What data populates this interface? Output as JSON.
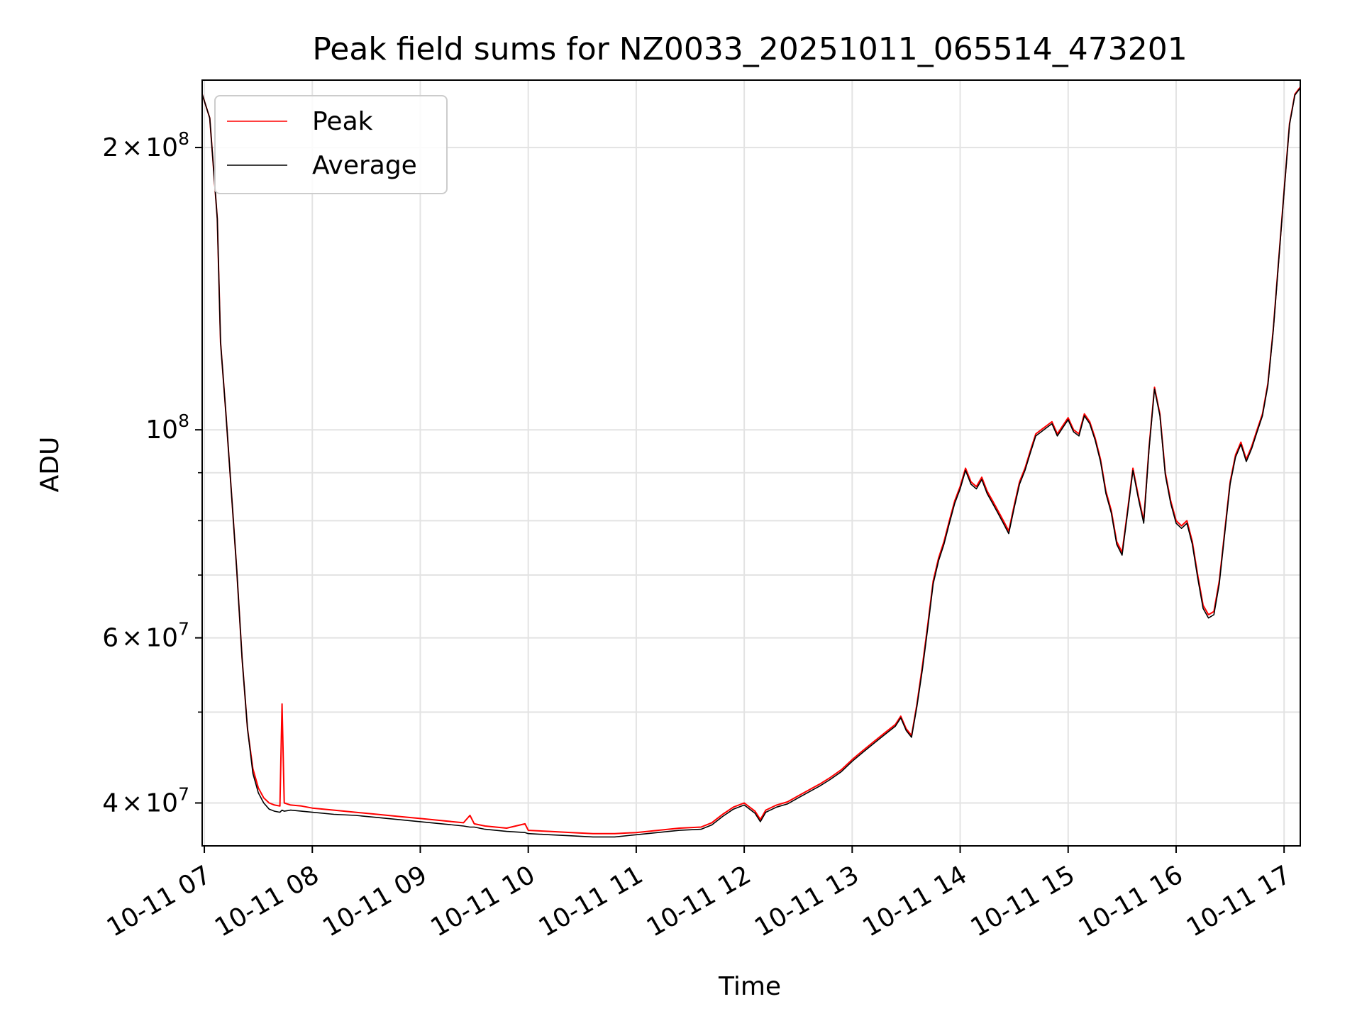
{
  "chart_data": {
    "type": "line",
    "title": "Peak field sums for NZ0033_20251011_065514_473201",
    "xlabel": "Time",
    "ylabel": "ADU",
    "x_unit": "hours (decimal time of day, 2025-10-11)",
    "xlim": [
      6.98,
      17.15
    ],
    "ylim": [
      36000000,
      236000000
    ],
    "yscale": "log",
    "grid": true,
    "legend_position": "upper-left",
    "x_ticks": [
      {
        "value": 7,
        "label": "10-11 07"
      },
      {
        "value": 8,
        "label": "10-11 08"
      },
      {
        "value": 9,
        "label": "10-11 09"
      },
      {
        "value": 10,
        "label": "10-11 10"
      },
      {
        "value": 11,
        "label": "10-11 11"
      },
      {
        "value": 12,
        "label": "10-11 12"
      },
      {
        "value": 13,
        "label": "10-11 13"
      },
      {
        "value": 14,
        "label": "10-11 14"
      },
      {
        "value": 15,
        "label": "10-11 15"
      },
      {
        "value": 16,
        "label": "10-11 16"
      },
      {
        "value": 17,
        "label": "10-11 17"
      }
    ],
    "y_ticks": [
      {
        "value": 40000000,
        "mant": "4",
        "exp": "7"
      },
      {
        "value": 60000000,
        "mant": "6",
        "exp": "7"
      },
      {
        "value": 100000000,
        "mant": "",
        "exp": "8"
      },
      {
        "value": 200000000,
        "mant": "2",
        "exp": "8"
      }
    ],
    "y_minor_ticks": [
      50000000,
      70000000,
      80000000,
      90000000
    ],
    "series": [
      {
        "name": "Peak",
        "color": "#ff0000",
        "x": [
          6.98,
          7.05,
          7.12,
          7.15,
          7.2,
          7.25,
          7.3,
          7.35,
          7.4,
          7.45,
          7.5,
          7.55,
          7.6,
          7.65,
          7.7,
          7.72,
          7.74,
          7.8,
          7.9,
          8.0,
          8.2,
          8.4,
          8.6,
          8.8,
          9.0,
          9.2,
          9.4,
          9.46,
          9.5,
          9.6,
          9.8,
          9.97,
          10.0,
          10.2,
          10.4,
          10.6,
          10.8,
          11.0,
          11.2,
          11.4,
          11.6,
          11.7,
          11.8,
          11.9,
          12.0,
          12.1,
          12.15,
          12.2,
          12.3,
          12.4,
          12.5,
          12.6,
          12.7,
          12.8,
          12.9,
          13.0,
          13.1,
          13.2,
          13.3,
          13.4,
          13.45,
          13.5,
          13.55,
          13.6,
          13.65,
          13.7,
          13.75,
          13.8,
          13.85,
          13.9,
          13.95,
          14.0,
          14.05,
          14.1,
          14.15,
          14.2,
          14.25,
          14.3,
          14.35,
          14.4,
          14.45,
          14.5,
          14.55,
          14.6,
          14.65,
          14.7,
          14.75,
          14.8,
          14.85,
          14.9,
          14.95,
          15.0,
          15.05,
          15.1,
          15.15,
          15.2,
          15.25,
          15.3,
          15.35,
          15.4,
          15.45,
          15.5,
          15.55,
          15.6,
          15.65,
          15.7,
          15.75,
          15.8,
          15.85,
          15.9,
          15.95,
          16.0,
          16.05,
          16.1,
          16.15,
          16.2,
          16.25,
          16.3,
          16.35,
          16.4,
          16.45,
          16.5,
          16.55,
          16.6,
          16.65,
          16.7,
          16.75,
          16.8,
          16.85,
          16.9,
          16.95,
          17.0,
          17.05,
          17.1,
          17.15
        ],
        "y": [
          228000000,
          215000000,
          168000000,
          124000000,
          104000000,
          86000000,
          71000000,
          57000000,
          48000000,
          43500000,
          41500000,
          40500000,
          40000000,
          39800000,
          39700000,
          51000000,
          40000000,
          39800000,
          39700000,
          39500000,
          39300000,
          39100000,
          38900000,
          38700000,
          38500000,
          38300000,
          38100000,
          38800000,
          38000000,
          37800000,
          37600000,
          38000000,
          37400000,
          37300000,
          37200000,
          37100000,
          37100000,
          37200000,
          37400000,
          37600000,
          37700000,
          38100000,
          38900000,
          39600000,
          40000000,
          39200000,
          38400000,
          39300000,
          39800000,
          40100000,
          40700000,
          41300000,
          41900000,
          42600000,
          43400000,
          44500000,
          45500000,
          46500000,
          47500000,
          48500000,
          49500000,
          48000000,
          47200000,
          51000000,
          56000000,
          62000000,
          69000000,
          73000000,
          76000000,
          80000000,
          84000000,
          87000000,
          91000000,
          88000000,
          87000000,
          89000000,
          86000000,
          84000000,
          82000000,
          80000000,
          78000000,
          83000000,
          88000000,
          91000000,
          95000000,
          99000000,
          100000000,
          101000000,
          102000000,
          99000000,
          101000000,
          103000000,
          100000000,
          99000000,
          104000000,
          102000000,
          98000000,
          93000000,
          86000000,
          82000000,
          76000000,
          74000000,
          82000000,
          91000000,
          85000000,
          80000000,
          96000000,
          111000000,
          104000000,
          90000000,
          84000000,
          80000000,
          79000000,
          80000000,
          76000000,
          70000000,
          65000000,
          63500000,
          64000000,
          69000000,
          78000000,
          88000000,
          94000000,
          97000000,
          93000000,
          96000000,
          100000000,
          104000000,
          112000000,
          128000000,
          152000000,
          180000000,
          212000000,
          228000000,
          232000000
        ]
      },
      {
        "name": "Average",
        "color": "#000000",
        "x": [
          6.98,
          7.05,
          7.12,
          7.15,
          7.2,
          7.25,
          7.3,
          7.35,
          7.4,
          7.45,
          7.5,
          7.55,
          7.6,
          7.65,
          7.7,
          7.72,
          7.74,
          7.8,
          7.9,
          8.0,
          8.2,
          8.4,
          8.6,
          8.8,
          9.0,
          9.2,
          9.4,
          9.46,
          9.5,
          9.6,
          9.8,
          9.97,
          10.0,
          10.2,
          10.4,
          10.6,
          10.8,
          11.0,
          11.2,
          11.4,
          11.6,
          11.7,
          11.8,
          11.9,
          12.0,
          12.1,
          12.15,
          12.2,
          12.3,
          12.4,
          12.5,
          12.6,
          12.7,
          12.8,
          12.9,
          13.0,
          13.1,
          13.2,
          13.3,
          13.4,
          13.45,
          13.5,
          13.55,
          13.6,
          13.65,
          13.7,
          13.75,
          13.8,
          13.85,
          13.9,
          13.95,
          14.0,
          14.05,
          14.1,
          14.15,
          14.2,
          14.25,
          14.3,
          14.35,
          14.4,
          14.45,
          14.5,
          14.55,
          14.6,
          14.65,
          14.7,
          14.75,
          14.8,
          14.85,
          14.9,
          14.95,
          15.0,
          15.05,
          15.1,
          15.15,
          15.2,
          15.25,
          15.3,
          15.35,
          15.4,
          15.45,
          15.5,
          15.55,
          15.6,
          15.65,
          15.7,
          15.75,
          15.8,
          15.85,
          15.9,
          15.95,
          16.0,
          16.05,
          16.1,
          16.15,
          16.2,
          16.25,
          16.3,
          16.35,
          16.4,
          16.45,
          16.5,
          16.55,
          16.6,
          16.65,
          16.7,
          16.75,
          16.8,
          16.85,
          16.9,
          16.95,
          17.0,
          17.05,
          17.1,
          17.15
        ],
        "y": [
          228000000,
          215000000,
          168000000,
          124000000,
          104000000,
          86000000,
          71000000,
          57000000,
          48000000,
          43000000,
          41000000,
          40000000,
          39400000,
          39200000,
          39100000,
          39300000,
          39200000,
          39300000,
          39200000,
          39100000,
          38900000,
          38800000,
          38600000,
          38400000,
          38200000,
          38000000,
          37800000,
          37700000,
          37700000,
          37500000,
          37300000,
          37200000,
          37100000,
          37000000,
          36900000,
          36800000,
          36800000,
          37000000,
          37200000,
          37400000,
          37500000,
          37900000,
          38700000,
          39400000,
          39800000,
          39000000,
          38200000,
          39100000,
          39600000,
          39900000,
          40500000,
          41100000,
          41700000,
          42400000,
          43200000,
          44300000,
          45300000,
          46300000,
          47300000,
          48300000,
          49300000,
          47800000,
          47000000,
          50700000,
          55500000,
          61500000,
          68500000,
          72500000,
          75500000,
          79500000,
          83500000,
          86500000,
          90500000,
          87500000,
          86500000,
          88500000,
          85500000,
          83500000,
          81500000,
          79500000,
          77500000,
          82500000,
          87500000,
          90500000,
          94500000,
          98500000,
          99500000,
          100500000,
          101500000,
          98500000,
          100500000,
          102500000,
          99500000,
          98500000,
          103500000,
          101500000,
          97500000,
          92500000,
          85500000,
          81500000,
          75500000,
          73500000,
          81500000,
          90500000,
          84500000,
          79500000,
          95500000,
          110500000,
          103500000,
          89500000,
          83500000,
          79500000,
          78500000,
          79500000,
          75500000,
          69500000,
          64500000,
          63000000,
          63500000,
          68500000,
          77500000,
          87500000,
          93500000,
          96500000,
          92500000,
          95500000,
          99500000,
          103500000,
          111500000,
          127500000,
          151500000,
          179500000,
          211500000,
          227500000,
          231500000
        ]
      }
    ]
  }
}
